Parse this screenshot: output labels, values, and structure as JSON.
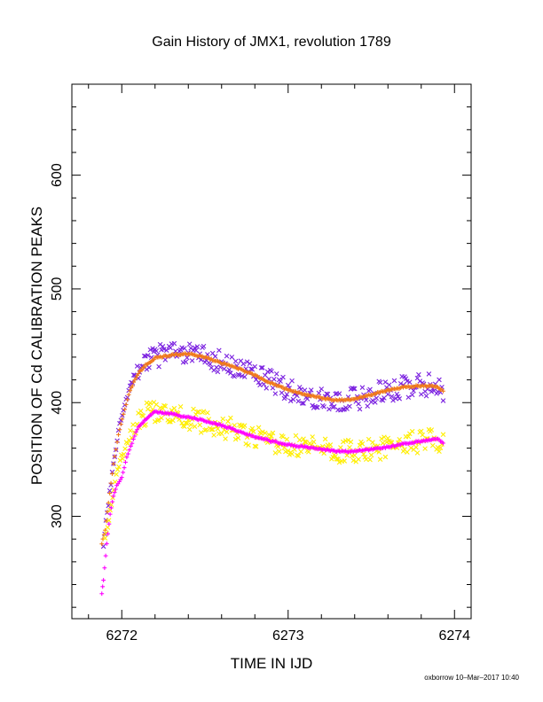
{
  "chart_data": {
    "type": "scatter",
    "title": "Gain History of JMX1, revolution 1789",
    "xlabel": "TIME IN IJD",
    "ylabel": "POSITION OF Cd CALIBRATION PEAKS",
    "xlim": [
      6271.7,
      6274.1
    ],
    "ylim": [
      210,
      680
    ],
    "x_ticks": [
      "6272",
      "6273",
      "6274"
    ],
    "y_ticks": [
      "300",
      "400",
      "500",
      "600"
    ],
    "grid": false,
    "legend": "none",
    "series": [
      {
        "marker": "x",
        "color": "#7b22e0",
        "points": [
          [
            6271.89,
            277
          ],
          [
            6271.92,
            312
          ],
          [
            6271.95,
            348
          ],
          [
            6271.98,
            375
          ],
          [
            6272.01,
            392
          ],
          [
            6272.05,
            412
          ],
          [
            6272.1,
            427
          ],
          [
            6272.15,
            435
          ],
          [
            6272.2,
            440
          ],
          [
            6272.3,
            444
          ],
          [
            6272.4,
            443
          ],
          [
            6272.5,
            440
          ],
          [
            6272.6,
            436
          ],
          [
            6272.7,
            432
          ],
          [
            6272.8,
            426
          ],
          [
            6272.9,
            419
          ],
          [
            6273.0,
            411
          ],
          [
            6273.1,
            407
          ],
          [
            6273.2,
            404
          ],
          [
            6273.3,
            402
          ],
          [
            6273.4,
            403
          ],
          [
            6273.5,
            407
          ],
          [
            6273.6,
            411
          ],
          [
            6273.7,
            414
          ],
          [
            6273.8,
            416
          ],
          [
            6273.9,
            415
          ],
          [
            6273.94,
            410
          ]
        ]
      },
      {
        "marker": "+",
        "color": "#f07a1a",
        "points": [
          [
            6271.88,
            276
          ],
          [
            6271.9,
            288
          ],
          [
            6271.92,
            312
          ],
          [
            6271.95,
            346
          ],
          [
            6271.98,
            372
          ],
          [
            6272.01,
            390
          ],
          [
            6272.05,
            411
          ],
          [
            6272.1,
            426
          ],
          [
            6272.15,
            434
          ],
          [
            6272.2,
            439
          ],
          [
            6272.3,
            442
          ],
          [
            6272.4,
            443
          ],
          [
            6272.5,
            440
          ],
          [
            6272.6,
            435
          ],
          [
            6272.7,
            430
          ],
          [
            6272.8,
            424
          ],
          [
            6272.9,
            417
          ],
          [
            6273.0,
            411
          ],
          [
            6273.1,
            407
          ],
          [
            6273.2,
            404
          ],
          [
            6273.3,
            402
          ],
          [
            6273.4,
            403
          ],
          [
            6273.5,
            407
          ],
          [
            6273.6,
            411
          ],
          [
            6273.7,
            414
          ],
          [
            6273.8,
            415
          ],
          [
            6273.9,
            414
          ],
          [
            6273.94,
            409
          ]
        ]
      },
      {
        "marker": "x",
        "color": "#ffee00",
        "points": [
          [
            6271.9,
            280
          ],
          [
            6271.93,
            305
          ],
          [
            6271.96,
            330
          ],
          [
            6271.99,
            348
          ],
          [
            6272.02,
            360
          ],
          [
            6272.06,
            376
          ],
          [
            6272.1,
            385
          ],
          [
            6272.15,
            390
          ],
          [
            6272.2,
            393
          ],
          [
            6272.3,
            390
          ],
          [
            6272.4,
            386
          ],
          [
            6272.5,
            383
          ],
          [
            6272.6,
            379
          ],
          [
            6272.7,
            375
          ],
          [
            6272.8,
            370
          ],
          [
            6272.9,
            366
          ],
          [
            6273.0,
            363
          ],
          [
            6273.1,
            361
          ],
          [
            6273.2,
            359
          ],
          [
            6273.3,
            357
          ],
          [
            6273.4,
            357
          ],
          [
            6273.5,
            359
          ],
          [
            6273.6,
            361
          ],
          [
            6273.7,
            364
          ],
          [
            6273.8,
            366
          ],
          [
            6273.9,
            367
          ],
          [
            6273.94,
            363
          ]
        ]
      },
      {
        "marker": "+",
        "color": "#ff00ff",
        "points": [
          [
            6271.88,
            232
          ],
          [
            6271.89,
            244
          ],
          [
            6271.91,
            276
          ],
          [
            6271.93,
            302
          ],
          [
            6271.95,
            318
          ],
          [
            6271.97,
            327
          ],
          [
            6272.0,
            334
          ],
          [
            6272.03,
            352
          ],
          [
            6272.07,
            368
          ],
          [
            6272.1,
            379
          ],
          [
            6272.15,
            386
          ],
          [
            6272.2,
            392
          ],
          [
            6272.3,
            390
          ],
          [
            6272.4,
            387
          ],
          [
            6272.5,
            384
          ],
          [
            6272.6,
            380
          ],
          [
            6272.7,
            375
          ],
          [
            6272.8,
            370
          ],
          [
            6272.9,
            366
          ],
          [
            6273.0,
            363
          ],
          [
            6273.1,
            361
          ],
          [
            6273.2,
            359
          ],
          [
            6273.3,
            357
          ],
          [
            6273.4,
            357
          ],
          [
            6273.5,
            359
          ],
          [
            6273.6,
            361
          ],
          [
            6273.7,
            364
          ],
          [
            6273.8,
            366
          ],
          [
            6273.9,
            368
          ],
          [
            6273.94,
            363
          ]
        ]
      }
    ]
  },
  "footer": "oxborrow 10–Mar–2017 10:40"
}
